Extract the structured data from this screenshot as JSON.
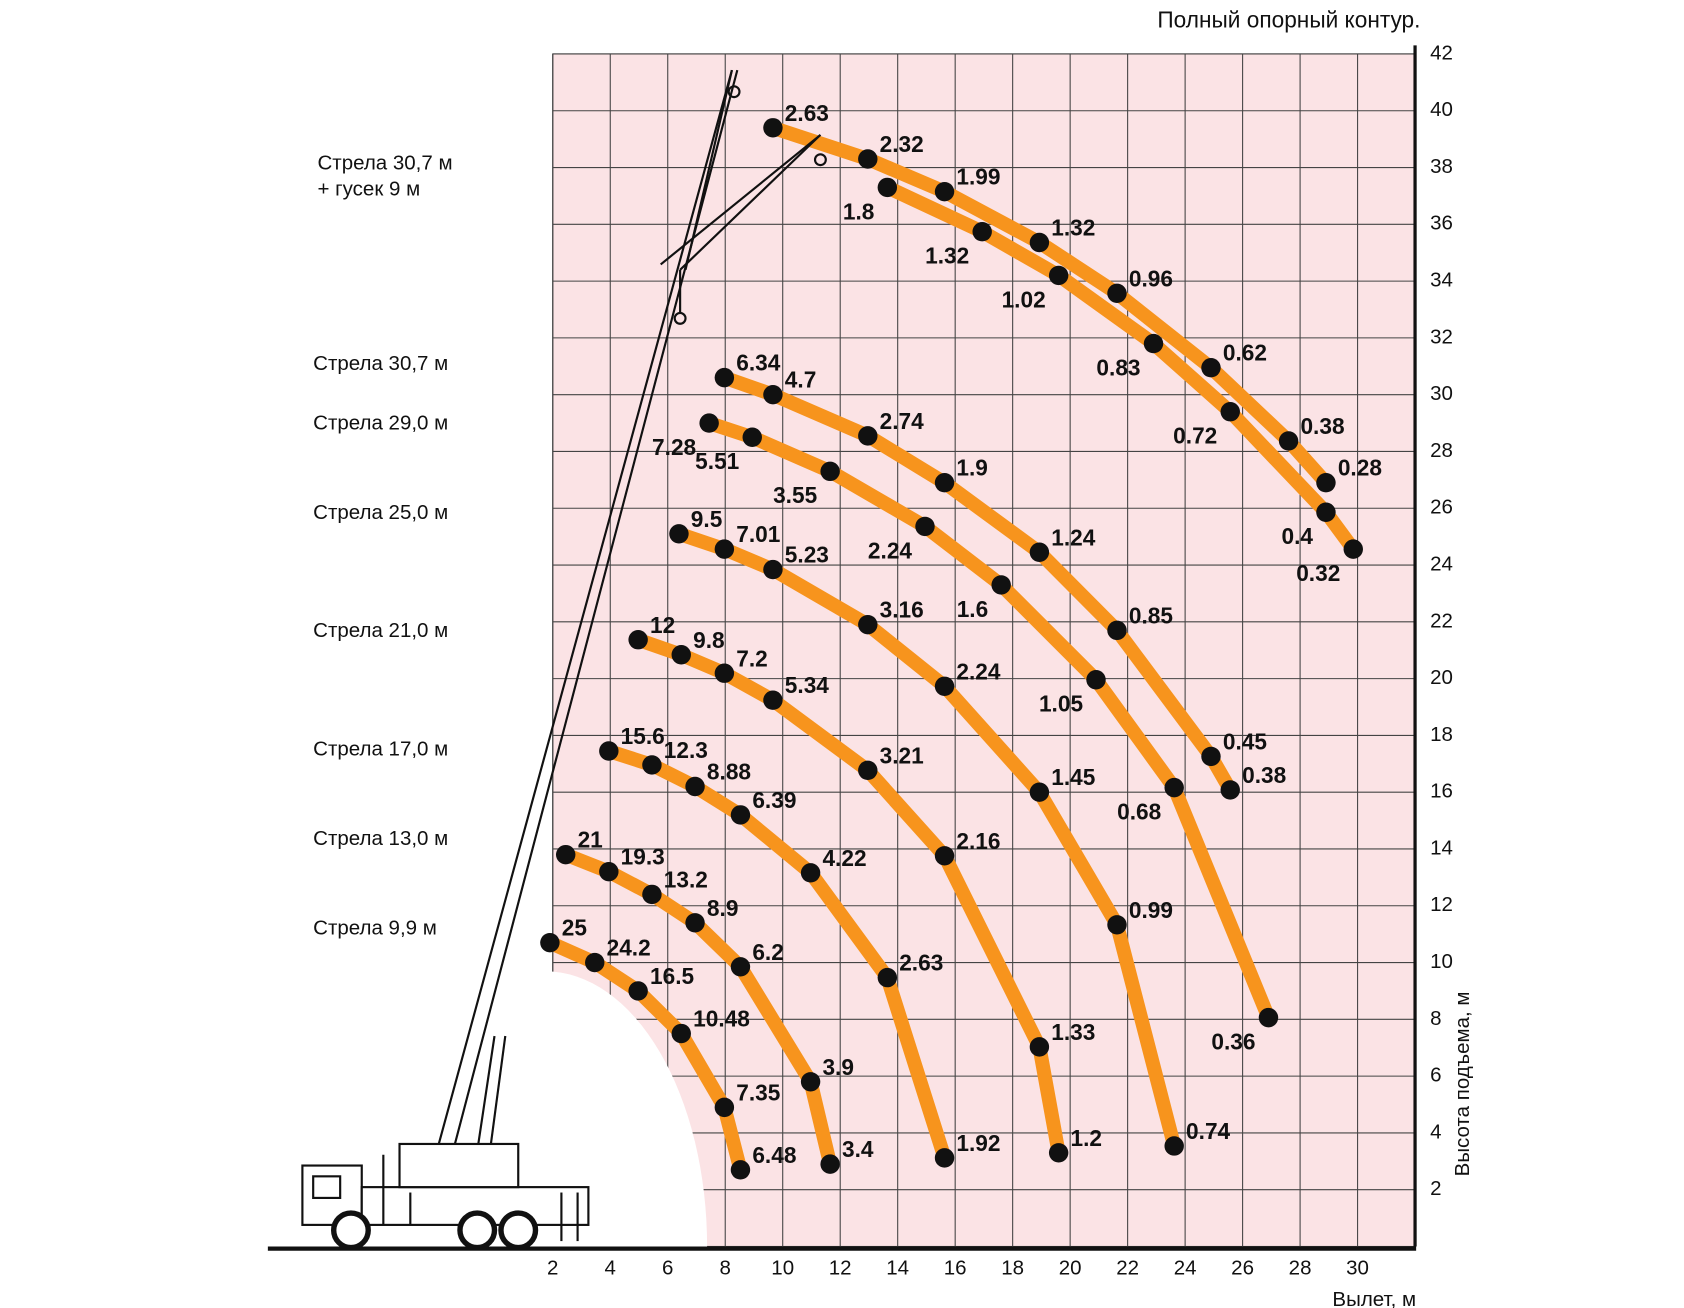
{
  "chart_data": {
    "type": "line",
    "title": "Полный опорный контур.",
    "xlabel": "Вылет, м",
    "ylabel": "Высота подъема, м",
    "xlim": [
      2,
      32
    ],
    "xticks": [
      2,
      4,
      6,
      8,
      10,
      12,
      14,
      16,
      18,
      20,
      22,
      24,
      26,
      28,
      30
    ],
    "ylim": [
      0,
      42
    ],
    "yticks": [
      2,
      4,
      6,
      8,
      10,
      12,
      14,
      16,
      18,
      20,
      22,
      24,
      26,
      28,
      30,
      32,
      34,
      36,
      38,
      40,
      42
    ],
    "grid": true,
    "series": [
      {
        "name": [
          "Стрела 30,7 м",
          "+ гусек 9 м"
        ],
        "color": "#f7941d",
        "x": [
          9.66,
          12.96,
          15.63,
          18.93,
          21.63,
          24.9,
          27.6,
          28.9
        ],
        "y": [
          39.4,
          38.3,
          37.15,
          35.36,
          33.57,
          30.95,
          28.37,
          26.9
        ],
        "loads": [
          2.63,
          2.32,
          1.99,
          1.32,
          0.96,
          0.62,
          0.38,
          0.28
        ]
      },
      {
        "color": "#f7941d",
        "x": [
          13.64,
          16.94,
          19.6,
          22.9,
          25.57,
          28.9,
          29.85
        ],
        "y": [
          37.3,
          35.74,
          34.2,
          31.8,
          29.4,
          25.86,
          24.56
        ],
        "loads": [
          1.8,
          1.32,
          1.02,
          0.83,
          0.72,
          0.4,
          0.32
        ]
      },
      {
        "name": "Стрела 30,7 м",
        "color": "#f7941d",
        "x": [
          7.97,
          9.66,
          12.96,
          15.63,
          18.93,
          21.63,
          24.9,
          25.57
        ],
        "y": [
          30.6,
          30.0,
          28.55,
          26.9,
          24.45,
          21.7,
          17.26,
          16.08
        ],
        "loads": [
          6.34,
          4.7,
          2.74,
          1.9,
          1.24,
          0.85,
          0.45,
          0.38
        ]
      },
      {
        "name": "Стрела 29,0 м",
        "color": "#f7941d",
        "x": [
          7.44,
          8.94,
          11.65,
          14.95,
          17.6,
          20.9,
          23.62,
          26.9
        ],
        "y": [
          29.0,
          28.5,
          27.3,
          25.36,
          23.3,
          19.96,
          16.16,
          8.06
        ],
        "loads": [
          7.28,
          5.51,
          3.55,
          2.24,
          1.6,
          1.05,
          0.68,
          0.36
        ]
      },
      {
        "name": "Стрела 25,0 м",
        "color": "#f7941d",
        "x": [
          6.39,
          7.97,
          9.66,
          12.96,
          15.63,
          18.93,
          21.63,
          23.62
        ],
        "y": [
          25.1,
          24.56,
          23.84,
          21.9,
          19.73,
          16.0,
          11.33,
          3.54
        ],
        "loads": [
          9.5,
          7.01,
          5.23,
          3.16,
          2.24,
          1.45,
          0.99,
          0.74
        ]
      },
      {
        "name": "Стрела 21,0 м",
        "color": "#f7941d",
        "x": [
          4.97,
          6.47,
          7.97,
          9.66,
          12.96,
          15.63,
          18.93,
          19.6
        ],
        "y": [
          21.37,
          20.84,
          20.19,
          19.24,
          16.77,
          13.76,
          7.03,
          3.3
        ],
        "loads": [
          12,
          9.8,
          7.2,
          5.34,
          3.21,
          2.16,
          1.33,
          1.2
        ]
      },
      {
        "name": "Стрела 17,0 м",
        "color": "#f7941d",
        "x": [
          3.95,
          5.45,
          6.95,
          8.53,
          10.97,
          13.64,
          15.63
        ],
        "y": [
          17.45,
          16.96,
          16.2,
          15.2,
          13.16,
          9.47,
          3.12
        ],
        "loads": [
          15.6,
          12.3,
          8.88,
          6.39,
          4.22,
          2.63,
          1.92
        ]
      },
      {
        "name": "Стрела 13,0 м",
        "color": "#f7941d",
        "x": [
          2.45,
          3.95,
          5.45,
          6.95,
          8.53,
          10.97,
          11.65
        ],
        "y": [
          13.8,
          13.2,
          12.4,
          11.4,
          9.85,
          5.8,
          2.9
        ],
        "loads": [
          21,
          19.3,
          13.2,
          8.9,
          6.2,
          3.9,
          3.4
        ]
      },
      {
        "name": "Стрела 9,9 м",
        "color": "#f7941d",
        "x": [
          1.9,
          3.46,
          4.97,
          6.47,
          7.97,
          8.53
        ],
        "y": [
          10.7,
          10.0,
          9.0,
          7.5,
          4.9,
          2.7
        ],
        "loads": [
          25,
          24.2,
          16.5,
          10.48,
          7.35,
          6.48
        ]
      }
    ]
  }
}
